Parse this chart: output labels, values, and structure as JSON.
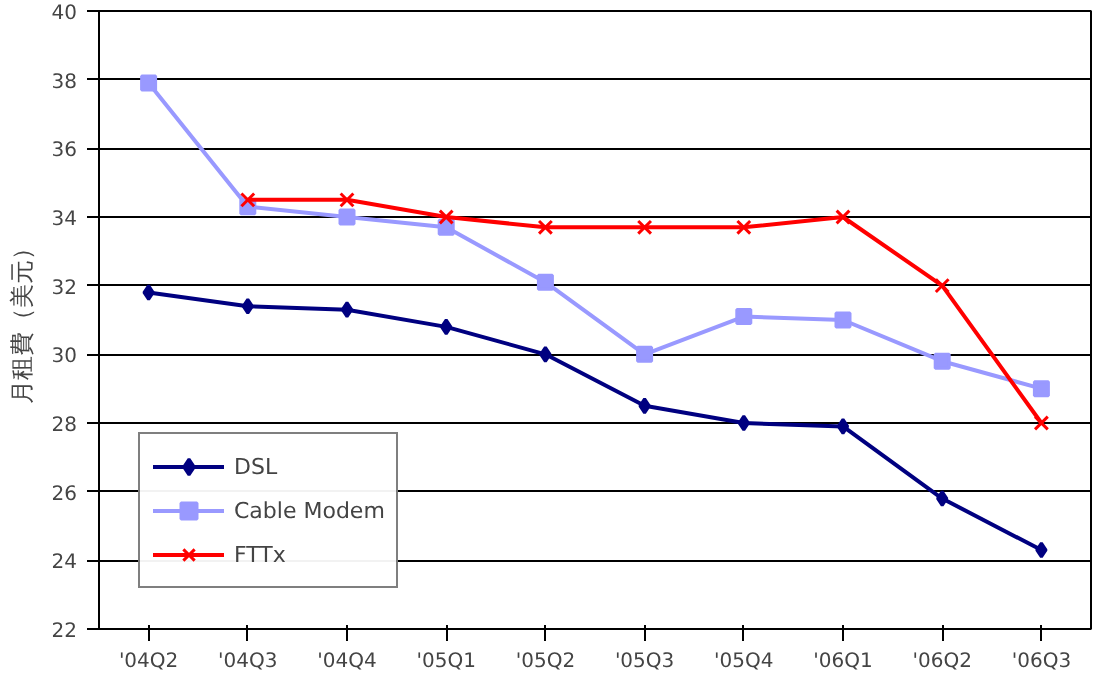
{
  "chart_data": {
    "type": "line",
    "ylabel": "月租費（美元）",
    "categories": [
      "'04Q2",
      "'04Q3",
      "'04Q4",
      "'05Q1",
      "'05Q2",
      "'05Q3",
      "'05Q4",
      "'06Q1",
      "'06Q2",
      "'06Q3"
    ],
    "series": [
      {
        "name": "DSL",
        "color": "#000080",
        "marker": "diamond",
        "values": [
          31.8,
          31.4,
          31.3,
          30.8,
          30.0,
          28.5,
          28.0,
          27.9,
          25.8,
          24.3
        ]
      },
      {
        "name": "Cable Modem",
        "color": "#9999ff",
        "marker": "square",
        "values": [
          37.9,
          34.3,
          34.0,
          33.7,
          32.1,
          30.0,
          31.1,
          31.0,
          29.8,
          29.0
        ]
      },
      {
        "name": "FTTx",
        "color": "#ff0000",
        "marker": "cross",
        "values": [
          null,
          34.5,
          34.5,
          34.0,
          33.7,
          33.7,
          33.7,
          34.0,
          32.0,
          28.0
        ]
      }
    ],
    "ylim": [
      22,
      40
    ],
    "yticks": [
      22,
      24,
      26,
      28,
      30,
      32,
      34,
      36,
      38,
      40
    ],
    "grid": "y",
    "legend": "bottom left"
  }
}
